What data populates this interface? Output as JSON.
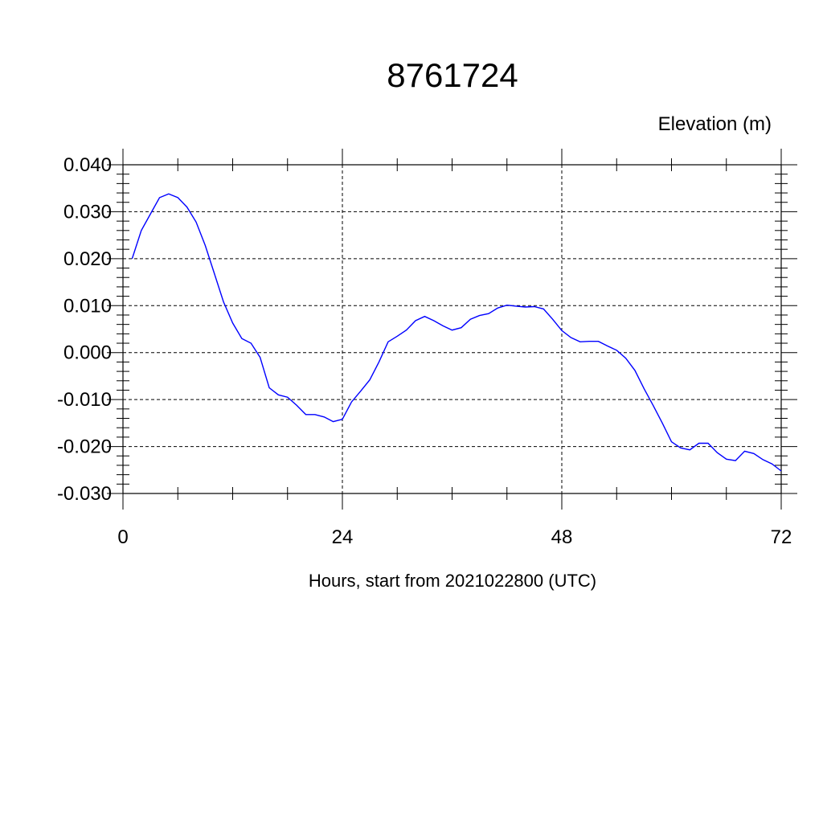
{
  "chart_data": {
    "type": "line",
    "title": "8761724",
    "ylabel": "Elevation (m)",
    "xlabel": "Hours, start from 2021022800 (UTC)",
    "xlim": [
      0,
      72
    ],
    "ylim": [
      -0.03,
      0.04
    ],
    "x_ticks": [
      0,
      24,
      48,
      72
    ],
    "x_tick_labels": [
      "0",
      "24",
      "48",
      "72"
    ],
    "y_ticks": [
      -0.03,
      -0.02,
      -0.01,
      0.0,
      0.01,
      0.02,
      0.03,
      0.04
    ],
    "y_tick_labels": [
      "-0.030",
      "-0.020",
      "-0.010",
      "0.000",
      "0.010",
      "0.020",
      "0.030",
      "0.040"
    ],
    "grid": true,
    "colors": {
      "series": "#0000ff",
      "axes": "#000000",
      "background": "#ffffff"
    },
    "series": [
      {
        "x": [
          1,
          2,
          3,
          4,
          5,
          6,
          7,
          8,
          9,
          10,
          11,
          12,
          13,
          14,
          15,
          16,
          17,
          18,
          19,
          20,
          21,
          22,
          23,
          24,
          25,
          26,
          27,
          28,
          29,
          30,
          31,
          32,
          33,
          34,
          35,
          36,
          37,
          38,
          39,
          40,
          41,
          42,
          43,
          44,
          45,
          46,
          47,
          48,
          49,
          50,
          51,
          52,
          53,
          54,
          55,
          56,
          57,
          58,
          59,
          60,
          61,
          62,
          63,
          64,
          65,
          66,
          67,
          68,
          69,
          70,
          71,
          72
        ],
        "values": [
          0.02,
          0.026,
          0.0295,
          0.033,
          0.0338,
          0.033,
          0.031,
          0.0278,
          0.0228,
          0.0168,
          0.0108,
          0.0063,
          0.003,
          0.002,
          -0.001,
          -0.0075,
          -0.009,
          -0.0095,
          -0.0112,
          -0.0132,
          -0.0132,
          -0.0137,
          -0.0147,
          -0.0142,
          -0.0105,
          -0.0082,
          -0.0058,
          -0.002,
          0.0023,
          0.0035,
          0.0048,
          0.0068,
          0.0077,
          0.0068,
          0.0057,
          0.0048,
          0.0053,
          0.0071,
          0.0079,
          0.0083,
          0.0095,
          0.0101,
          0.0099,
          0.0097,
          0.0098,
          0.0093,
          0.0071,
          0.0047,
          0.0032,
          0.0023,
          0.0024,
          0.0024,
          0.0014,
          0.0005,
          -0.0012,
          -0.0038,
          -0.0077,
          -0.0113,
          -0.015,
          -0.019,
          -0.0203,
          -0.0207,
          -0.0193,
          -0.0193,
          -0.0213,
          -0.0227,
          -0.023,
          -0.021,
          -0.0215,
          -0.0228,
          -0.0237,
          -0.0252
        ]
      }
    ]
  }
}
